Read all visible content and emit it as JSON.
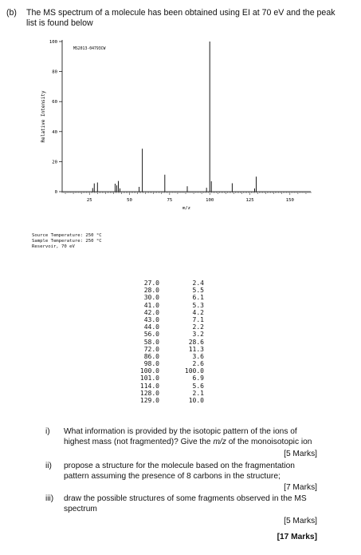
{
  "intro": {
    "label": "(b)",
    "text": "The MS spectrum of a molecule has been obtained using EI at 70 eV and the peak list is found below"
  },
  "chart_data": {
    "type": "bar",
    "title": "MS2013-04793CW",
    "xlabel": "m/z",
    "ylabel": "Relative Intensity",
    "xlim": [
      8,
      163
    ],
    "ylim": [
      0,
      100
    ],
    "xticks": [
      25,
      50,
      75,
      100,
      125,
      150
    ],
    "yticks": [
      0,
      20,
      40,
      60,
      80,
      100
    ],
    "grid": false,
    "x": [
      27.0,
      28.0,
      30.0,
      41.0,
      42.0,
      43.0,
      44.0,
      56.0,
      58.0,
      72.0,
      86.0,
      98.0,
      100.0,
      101.0,
      114.0,
      128.0,
      129.0
    ],
    "values": [
      2.4,
      5.5,
      6.1,
      5.3,
      4.2,
      7.1,
      2.2,
      3.2,
      28.6,
      11.3,
      3.6,
      2.6,
      100.0,
      6.9,
      5.6,
      2.1,
      10.0
    ]
  },
  "conditions": [
    "Source Temperature: 250 °C",
    "Sample Temperature: 250 °C",
    "Reservoir, 70 eV"
  ],
  "peaks": [
    {
      "mz": "27.0",
      "ri": "2.4"
    },
    {
      "mz": "28.0",
      "ri": "5.5"
    },
    {
      "mz": "30.0",
      "ri": "6.1"
    },
    {
      "mz": "41.0",
      "ri": "5.3"
    },
    {
      "mz": "42.0",
      "ri": "4.2"
    },
    {
      "mz": "43.0",
      "ri": "7.1"
    },
    {
      "mz": "44.0",
      "ri": "2.2"
    },
    {
      "mz": "56.0",
      "ri": "3.2"
    },
    {
      "mz": "58.0",
      "ri": "28.6"
    },
    {
      "mz": "72.0",
      "ri": "11.3"
    },
    {
      "mz": "86.0",
      "ri": "3.6"
    },
    {
      "mz": "98.0",
      "ri": "2.6"
    },
    {
      "mz": "100.0",
      "ri": "100.0"
    },
    {
      "mz": "101.0",
      "ri": "6.9"
    },
    {
      "mz": "114.0",
      "ri": "5.6"
    },
    {
      "mz": "128.0",
      "ri": "2.1"
    },
    {
      "mz": "129.0",
      "ri": "10.0"
    }
  ],
  "questions": [
    {
      "num": "i)",
      "text": "What information is provided by the isotopic pattern of the ions of highest mass (not fragmented)? Give the m/z of the monoisotopic ion",
      "marks": "[5 Marks]"
    },
    {
      "num": "ii)",
      "text": "propose a structure for the molecule based on the fragmentation pattern assuming the presence of 8 carbons in the structure;",
      "marks": "[7 Marks]"
    },
    {
      "num": "iii)",
      "text": "draw the possible structures of some fragments observed in the MS spectrum",
      "marks": "[5 Marks]"
    }
  ],
  "total": "[17 Marks]"
}
